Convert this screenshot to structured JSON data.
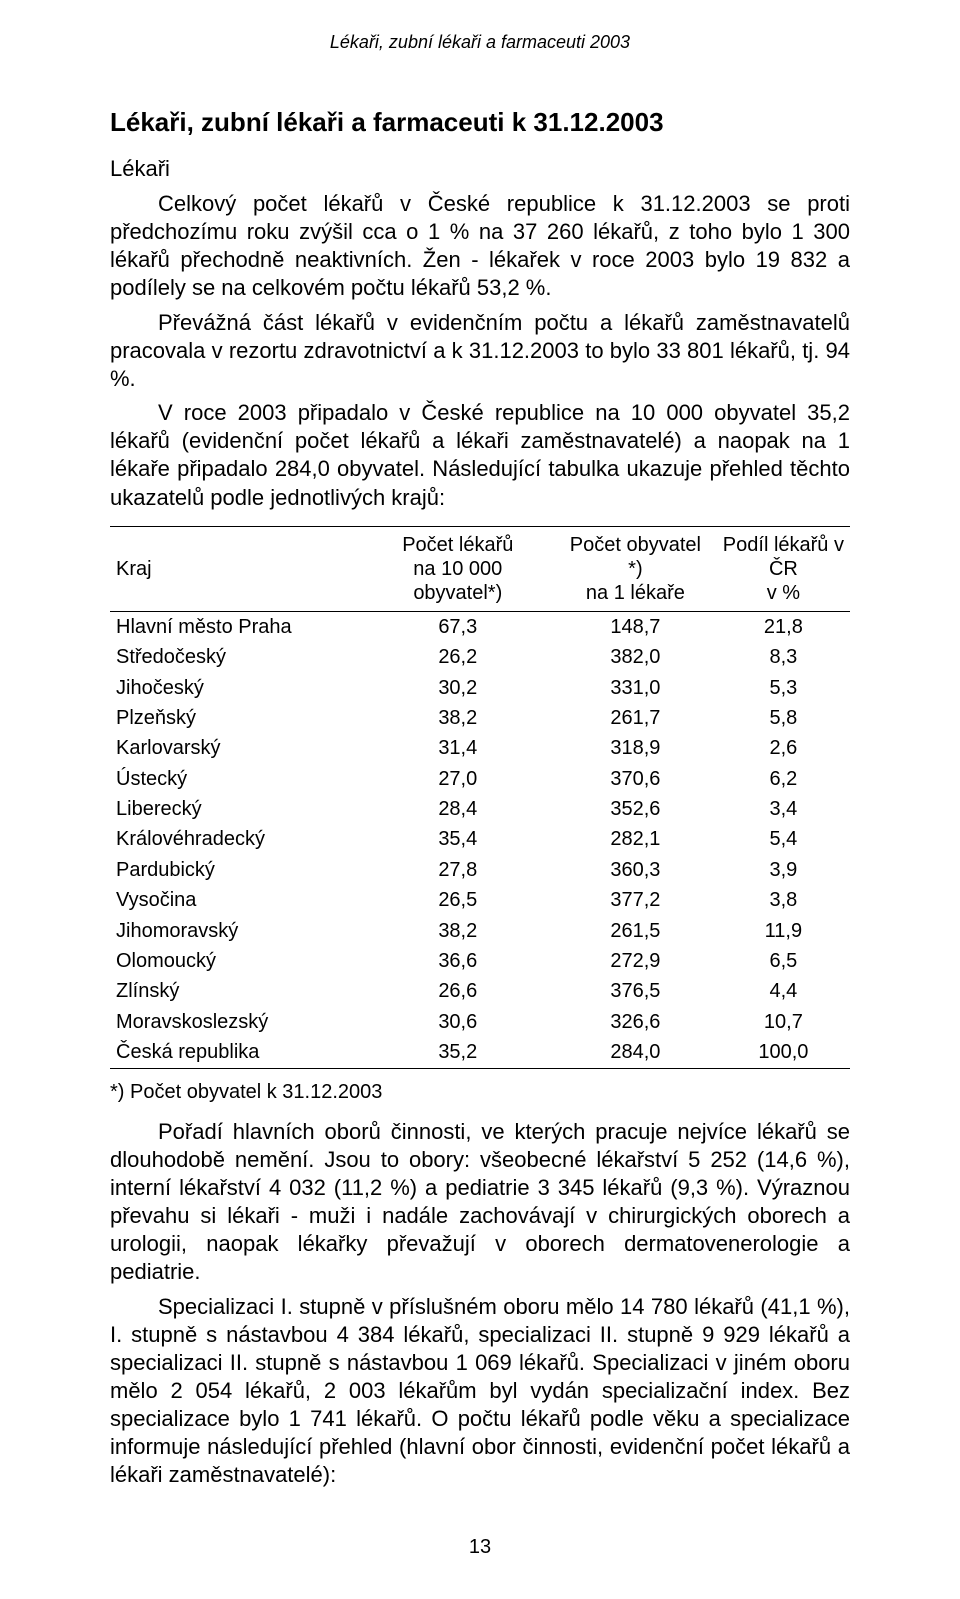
{
  "running_head": "Lékaři, zubní lékaři a farmaceuti 2003",
  "title": "Lékaři, zubní lékaři a farmaceuti k 31.12.2003",
  "section_label": "Lékaři",
  "paragraphs": {
    "p1": "Celkový počet lékařů v České republice k 31.12.2003 se proti předchozímu roku zvýšil cca o 1 % na 37 260 lékařů, z toho bylo 1 300 lékařů přechodně neaktivních. Žen - lékařek v roce 2003 bylo 19 832 a podílely se na celkovém počtu lékařů 53,2 %.",
    "p2": "Převážná část lékařů v evidenčním počtu a lékařů zaměstnavatelů pracovala v rezortu zdravotnictví a k 31.12.2003 to bylo 33 801 lékařů, tj. 94 %.",
    "p3": "V roce 2003 připadalo v České republice na 10 000 obyvatel 35,2 lékařů (evidenční počet lékařů a lékaři zaměstnavatelé) a naopak na 1 lékaře připadalo 284,0 obyvatel. Následující tabulka ukazuje přehled těchto ukazatelů podle jednotlivých krajů:",
    "p4": "Pořadí hlavních oborů činnosti, ve kterých pracuje nejvíce lékařů se dlouhodobě nemění. Jsou to obory: všeobecné lékařství 5 252 (14,6 %), interní lékařství 4 032 (11,2 %) a pediatrie 3 345 lékařů (9,3 %). Výraznou převahu si lékaři - muži i nadále zachovávají v chirurgických oborech a urologii, naopak lékařky převažují v oborech dermatovenerologie a pediatrie.",
    "p5": "Specializaci I. stupně v příslušném oboru mělo 14 780 lékařů (41,1 %), I. stupně s nástavbou 4 384 lékařů, specializaci II. stupně 9 929 lékařů a specializaci II. stupně s nástavbou 1 069 lékařů. Specializaci v jiném oboru mělo 2 054 lékařů, 2 003 lékařům byl vydán specializační index. Bez specializace bylo 1 741 lékařů. O počtu lékařů podle věku a specializace informuje následující přehled (hlavní obor činnosti, evidenční počet lékařů a lékaři zaměstnavatelé):"
  },
  "table": {
    "type": "table",
    "columns": [
      {
        "key": "kraj",
        "label_line1": "Kraj",
        "label_line2": "",
        "align": "left",
        "width": "34%"
      },
      {
        "key": "per10k",
        "label_line1": "Počet lékařů",
        "label_line2": "na 10 000 obyvatel*)",
        "align": "center",
        "width": "26%"
      },
      {
        "key": "per1",
        "label_line1": "Počet obyvatel *)",
        "label_line2": "na 1 lékaře",
        "align": "center",
        "width": "22%"
      },
      {
        "key": "share",
        "label_line1": "Podíl lékařů v ČR",
        "label_line2": "v %",
        "align": "center",
        "width": "18%"
      }
    ],
    "rows": [
      {
        "kraj": "Hlavní město Praha",
        "per10k": "67,3",
        "per1": "148,7",
        "share": "21,8"
      },
      {
        "kraj": "Středočeský",
        "per10k": "26,2",
        "per1": "382,0",
        "share": "8,3"
      },
      {
        "kraj": "Jihočeský",
        "per10k": "30,2",
        "per1": "331,0",
        "share": "5,3"
      },
      {
        "kraj": "Plzeňský",
        "per10k": "38,2",
        "per1": "261,7",
        "share": "5,8"
      },
      {
        "kraj": "Karlovarský",
        "per10k": "31,4",
        "per1": "318,9",
        "share": "2,6"
      },
      {
        "kraj": "Ústecký",
        "per10k": "27,0",
        "per1": "370,6",
        "share": "6,2"
      },
      {
        "kraj": "Liberecký",
        "per10k": "28,4",
        "per1": "352,6",
        "share": "3,4"
      },
      {
        "kraj": "Královéhradecký",
        "per10k": "35,4",
        "per1": "282,1",
        "share": "5,4"
      },
      {
        "kraj": "Pardubický",
        "per10k": "27,8",
        "per1": "360,3",
        "share": "3,9"
      },
      {
        "kraj": "Vysočina",
        "per10k": "26,5",
        "per1": "377,2",
        "share": "3,8"
      },
      {
        "kraj": "Jihomoravský",
        "per10k": "38,2",
        "per1": "261,5",
        "share": "11,9"
      },
      {
        "kraj": "Olomoucký",
        "per10k": "36,6",
        "per1": "272,9",
        "share": "6,5"
      },
      {
        "kraj": "Zlínský",
        "per10k": "26,6",
        "per1": "376,5",
        "share": "4,4"
      },
      {
        "kraj": "Moravskoslezský",
        "per10k": "30,6",
        "per1": "326,6",
        "share": "10,7"
      },
      {
        "kraj": "Česká republika",
        "per10k": "35,2",
        "per1": "284,0",
        "share": "100,0"
      }
    ],
    "header_fontsize": 20,
    "body_fontsize": 20,
    "border_color": "#000000"
  },
  "footnote": "*) Počet obyvatel k 31.12.2003",
  "page_number": "13"
}
